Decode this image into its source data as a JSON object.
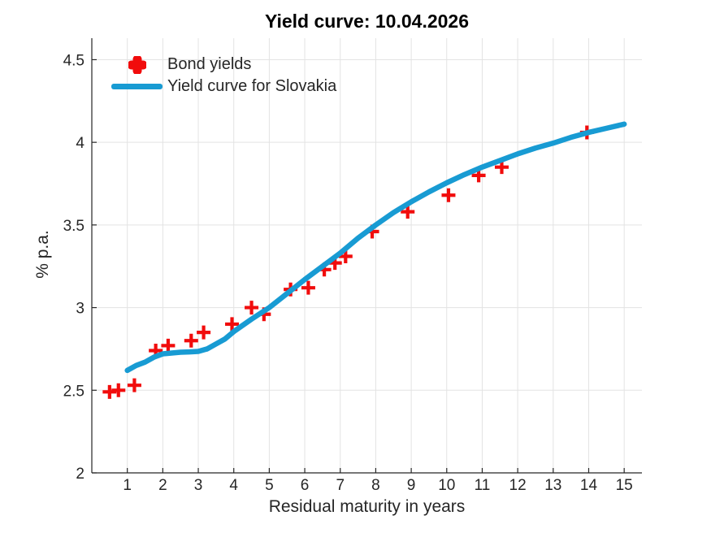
{
  "title": "Yield curve: 10.04.2026",
  "chart_data": {
    "type": "scatter+line",
    "title": "Yield curve: 10.04.2026",
    "xlabel": "Residual maturity in years",
    "ylabel": "% p.a.",
    "xlim": [
      0,
      15.5
    ],
    "ylim": [
      2,
      4.63
    ],
    "xticks": [
      1,
      2,
      3,
      4,
      5,
      6,
      7,
      8,
      9,
      10,
      11,
      12,
      13,
      14,
      15
    ],
    "xtick_labels": [
      "1",
      "2",
      "3",
      "4",
      "5",
      "6",
      "7",
      "8",
      "9",
      "10",
      "11",
      "12",
      "13",
      "14",
      "15"
    ],
    "yticks": [
      2,
      2.5,
      3,
      3.5,
      4,
      4.5
    ],
    "ytick_labels": [
      "2",
      "2.5",
      "3",
      "3.5",
      "4",
      "4.5"
    ],
    "grid": true,
    "legend_position": "inside-top-left",
    "series": [
      {
        "name": "Bond yields",
        "type": "scatter",
        "marker": "plus",
        "color": "#F10C0C",
        "points": [
          [
            0.5,
            2.49
          ],
          [
            0.75,
            2.5
          ],
          [
            1.2,
            2.53
          ],
          [
            1.8,
            2.74
          ],
          [
            2.15,
            2.77
          ],
          [
            2.8,
            2.8
          ],
          [
            3.15,
            2.85
          ],
          [
            3.95,
            2.9
          ],
          [
            4.5,
            3.0
          ],
          [
            4.85,
            2.96
          ],
          [
            5.6,
            3.11
          ],
          [
            6.1,
            3.12
          ],
          [
            6.55,
            3.23
          ],
          [
            6.85,
            3.27
          ],
          [
            7.15,
            3.31
          ],
          [
            7.9,
            3.46
          ],
          [
            8.9,
            3.58
          ],
          [
            10.05,
            3.68
          ],
          [
            10.9,
            3.8
          ],
          [
            11.55,
            3.85
          ],
          [
            13.95,
            4.06
          ]
        ]
      },
      {
        "name": "Yield curve for Slovakia",
        "type": "line",
        "color": "#189BD3",
        "points": [
          [
            1,
            2.62
          ],
          [
            1.25,
            2.65
          ],
          [
            1.5,
            2.67
          ],
          [
            1.75,
            2.7
          ],
          [
            2,
            2.72
          ],
          [
            2.25,
            2.725
          ],
          [
            2.5,
            2.73
          ],
          [
            2.75,
            2.732
          ],
          [
            3,
            2.735
          ],
          [
            3.25,
            2.75
          ],
          [
            3.5,
            2.78
          ],
          [
            3.75,
            2.81
          ],
          [
            4,
            2.855
          ],
          [
            4.5,
            2.93
          ],
          [
            5,
            3.0
          ],
          [
            5.5,
            3.085
          ],
          [
            6,
            3.17
          ],
          [
            6.5,
            3.25
          ],
          [
            7,
            3.33
          ],
          [
            7.5,
            3.42
          ],
          [
            8,
            3.5
          ],
          [
            8.5,
            3.575
          ],
          [
            9,
            3.64
          ],
          [
            9.5,
            3.7
          ],
          [
            10,
            3.755
          ],
          [
            10.5,
            3.805
          ],
          [
            11,
            3.85
          ],
          [
            11.5,
            3.89
          ],
          [
            12,
            3.93
          ],
          [
            12.5,
            3.965
          ],
          [
            13,
            3.995
          ],
          [
            13.5,
            4.03
          ],
          [
            14,
            4.06
          ],
          [
            14.5,
            4.085
          ],
          [
            15,
            4.11
          ]
        ]
      }
    ]
  },
  "colors": {
    "background": "#FFFFFF",
    "grid": "#E3E3E3",
    "axis": "#262626",
    "tick_text": "#262626",
    "title_text": "#000000",
    "bond_yields": "#F10C0C",
    "yield_curve": "#189BD3"
  }
}
